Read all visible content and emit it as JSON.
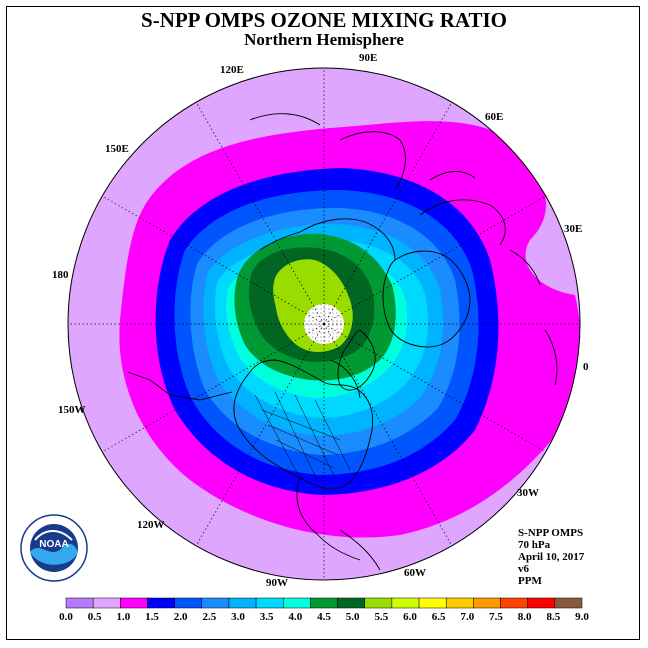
{
  "title": "S-NPP OMPS OZONE MIXING RATIO",
  "subtitle": "Northern Hemisphere",
  "longitude_labels": [
    "90E",
    "60E",
    "30E",
    "0",
    "30W",
    "60W",
    "90W",
    "120W",
    "150W",
    "180",
    "150E",
    "120E"
  ],
  "info": {
    "instrument": "S-NPP OMPS",
    "pressure": "70 hPa",
    "date": "April 10, 2017",
    "version": "v6",
    "units": "PPM"
  },
  "logo_text": "NOAA",
  "colorbar": {
    "ticks": [
      "0.0",
      "0.5",
      "1.0",
      "1.5",
      "2.0",
      "2.5",
      "3.0",
      "3.5",
      "4.0",
      "4.5",
      "5.0",
      "5.5",
      "6.0",
      "6.5",
      "7.0",
      "7.5",
      "8.0",
      "8.5",
      "9.0"
    ],
    "colors": [
      "#b57bff",
      "#dfa6ff",
      "#ff00ff",
      "#0000ff",
      "#0055ff",
      "#1a8cff",
      "#00b3ff",
      "#00d9ff",
      "#00ffdd",
      "#009933",
      "#006622",
      "#99dd00",
      "#ccff00",
      "#ffff00",
      "#ffcc00",
      "#ff9900",
      "#ff4400",
      "#ff0000",
      "#8b5a3c"
    ]
  }
}
